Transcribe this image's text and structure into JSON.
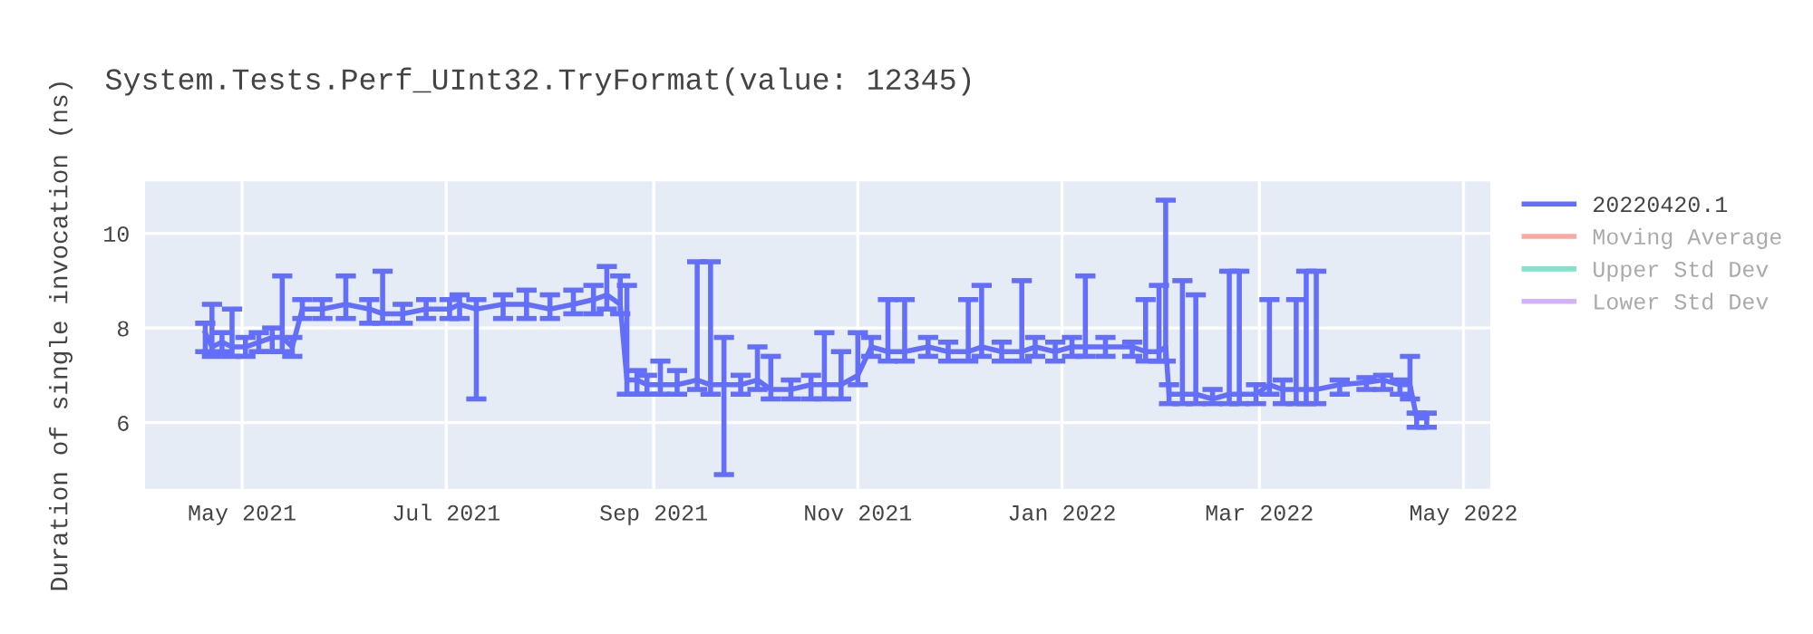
{
  "chart_data": {
    "type": "line",
    "title": "System.Tests.Perf_UInt32.TryFormat(value: 12345)",
    "ylabel": "Duration of single invocation (ns)",
    "x": [
      "2021-04-20",
      "2021-04-22",
      "2021-04-25",
      "2021-04-28",
      "2021-05-02",
      "2021-05-06",
      "2021-05-10",
      "2021-05-13",
      "2021-05-16",
      "2021-05-19",
      "2021-05-25",
      "2021-06-01",
      "2021-06-08",
      "2021-06-12",
      "2021-06-18",
      "2021-06-25",
      "2021-07-02",
      "2021-07-05",
      "2021-07-10",
      "2021-07-18",
      "2021-07-25",
      "2021-08-01",
      "2021-08-08",
      "2021-08-14",
      "2021-08-18",
      "2021-08-22",
      "2021-08-24",
      "2021-08-27",
      "2021-08-30",
      "2021-09-03",
      "2021-09-08",
      "2021-09-14",
      "2021-09-18",
      "2021-09-22",
      "2021-09-27",
      "2021-10-02",
      "2021-10-06",
      "2021-10-12",
      "2021-10-18",
      "2021-10-22",
      "2021-10-27",
      "2021-11-01",
      "2021-11-05",
      "2021-11-10",
      "2021-11-15",
      "2021-11-22",
      "2021-11-28",
      "2021-12-04",
      "2021-12-08",
      "2021-12-14",
      "2021-12-20",
      "2021-12-24",
      "2021-12-30",
      "2022-01-04",
      "2022-01-08",
      "2022-01-14",
      "2022-01-22",
      "2022-01-26",
      "2022-01-30",
      "2022-02-01",
      "2022-02-02",
      "2022-02-06",
      "2022-02-10",
      "2022-02-15",
      "2022-02-20",
      "2022-02-23",
      "2022-02-28",
      "2022-03-04",
      "2022-03-08",
      "2022-03-12",
      "2022-03-15",
      "2022-03-18",
      "2022-03-25",
      "2022-04-02",
      "2022-04-07",
      "2022-04-12",
      "2022-04-15",
      "2022-04-17",
      "2022-04-20"
    ],
    "series": [
      {
        "name": "20220420.1",
        "color": "#636efa",
        "values": [
          7.9,
          7.6,
          7.7,
          7.6,
          7.6,
          7.7,
          7.8,
          7.8,
          7.6,
          8.4,
          8.4,
          8.5,
          8.4,
          8.3,
          8.3,
          8.4,
          8.4,
          8.5,
          8.4,
          8.5,
          8.5,
          8.4,
          8.5,
          8.6,
          8.7,
          8.5,
          6.9,
          6.9,
          6.8,
          6.8,
          6.8,
          6.9,
          6.8,
          6.8,
          6.8,
          6.9,
          6.7,
          6.7,
          6.8,
          6.8,
          6.8,
          7.0,
          7.6,
          7.5,
          7.5,
          7.6,
          7.5,
          7.5,
          7.6,
          7.5,
          7.5,
          7.6,
          7.5,
          7.6,
          7.6,
          7.6,
          7.6,
          7.5,
          7.5,
          7.6,
          6.6,
          6.6,
          6.6,
          6.5,
          6.6,
          6.6,
          6.6,
          6.8,
          6.7,
          6.7,
          6.7,
          6.7,
          6.8,
          6.85,
          6.9,
          6.8,
          6.8,
          6.1,
          6.1
        ],
        "errors": [
          [
            7.5,
            8.1
          ],
          [
            7.4,
            8.5
          ],
          [
            7.5,
            7.9
          ],
          [
            7.4,
            8.4
          ],
          [
            7.4,
            7.8
          ],
          [
            7.5,
            7.9
          ],
          [
            7.5,
            8.0
          ],
          [
            7.5,
            9.1
          ],
          [
            7.4,
            7.8
          ],
          [
            8.2,
            8.6
          ],
          [
            8.2,
            8.6
          ],
          [
            8.2,
            9.1
          ],
          [
            8.1,
            8.6
          ],
          [
            8.1,
            9.2
          ],
          [
            8.1,
            8.5
          ],
          [
            8.2,
            8.6
          ],
          [
            8.2,
            8.6
          ],
          [
            8.2,
            8.7
          ],
          [
            6.5,
            8.6
          ],
          [
            8.2,
            8.7
          ],
          [
            8.2,
            8.8
          ],
          [
            8.2,
            8.7
          ],
          [
            8.3,
            8.8
          ],
          [
            8.3,
            8.9
          ],
          [
            8.4,
            9.3
          ],
          [
            8.3,
            9.1
          ],
          [
            6.6,
            8.9
          ],
          [
            6.6,
            7.1
          ],
          [
            6.6,
            7.0
          ],
          [
            6.6,
            7.3
          ],
          [
            6.6,
            7.1
          ],
          [
            6.7,
            9.4
          ],
          [
            6.6,
            9.4
          ],
          [
            4.9,
            7.8
          ],
          [
            6.6,
            7.0
          ],
          [
            6.7,
            7.6
          ],
          [
            6.5,
            7.4
          ],
          [
            6.5,
            6.9
          ],
          [
            6.5,
            7.0
          ],
          [
            6.5,
            7.9
          ],
          [
            6.5,
            7.5
          ],
          [
            6.8,
            7.9
          ],
          [
            7.4,
            7.8
          ],
          [
            7.3,
            8.6
          ],
          [
            7.3,
            8.6
          ],
          [
            7.4,
            7.8
          ],
          [
            7.3,
            7.7
          ],
          [
            7.3,
            8.6
          ],
          [
            7.4,
            8.9
          ],
          [
            7.3,
            7.7
          ],
          [
            7.3,
            9.0
          ],
          [
            7.4,
            7.8
          ],
          [
            7.3,
            7.7
          ],
          [
            7.4,
            7.8
          ],
          [
            7.4,
            9.1
          ],
          [
            7.4,
            7.8
          ],
          [
            7.4,
            7.7
          ],
          [
            7.3,
            8.6
          ],
          [
            7.3,
            8.9
          ],
          [
            7.3,
            10.7
          ],
          [
            6.4,
            6.8
          ],
          [
            6.4,
            9.0
          ],
          [
            6.4,
            8.7
          ],
          [
            6.4,
            6.7
          ],
          [
            6.4,
            9.2
          ],
          [
            6.4,
            9.2
          ],
          [
            6.4,
            6.8
          ],
          [
            6.6,
            8.6
          ],
          [
            6.4,
            6.9
          ],
          [
            6.4,
            8.6
          ],
          [
            6.4,
            9.2
          ],
          [
            6.4,
            9.2
          ],
          [
            6.6,
            6.9
          ],
          [
            6.7,
            6.95
          ],
          [
            6.7,
            7.0
          ],
          [
            6.6,
            6.9
          ],
          [
            6.5,
            7.4
          ],
          [
            5.9,
            6.2
          ],
          [
            5.9,
            6.2
          ]
        ]
      },
      {
        "name": "Moving Average",
        "color": "#ef553b",
        "values": [
          null,
          null,
          null,
          null,
          null,
          null,
          null,
          null,
          null,
          null,
          null,
          null,
          null,
          null,
          null,
          null,
          null,
          null,
          null,
          null,
          null,
          null,
          null,
          null,
          null,
          null,
          null,
          null,
          null,
          null,
          null,
          null,
          null,
          null,
          null,
          null,
          null,
          null,
          null,
          null,
          null,
          null,
          null,
          null,
          null,
          null,
          null,
          null,
          null,
          null,
          null,
          null,
          null,
          null,
          null,
          null,
          null,
          null,
          null,
          null,
          null,
          null,
          null,
          null,
          null,
          null,
          null,
          null,
          null,
          null,
          null,
          null,
          null,
          null,
          null,
          null,
          null,
          null,
          null
        ]
      },
      {
        "name": "Upper Std Dev",
        "color": "#00cc96",
        "values": [
          null,
          null,
          null,
          null,
          null,
          null,
          null,
          null,
          null,
          null,
          null,
          null,
          null,
          null,
          null,
          null,
          null,
          null,
          null,
          null,
          null,
          null,
          null,
          null,
          null,
          null,
          null,
          null,
          null,
          null,
          null,
          null,
          null,
          null,
          null,
          null,
          null,
          null,
          null,
          null,
          null,
          null,
          null,
          null,
          null,
          null,
          null,
          null,
          null,
          null,
          null,
          null,
          null,
          null,
          null,
          null,
          null,
          null,
          null,
          null,
          null,
          null,
          null,
          null,
          null,
          null,
          null,
          null,
          null,
          null,
          null,
          null,
          null,
          null,
          null,
          null,
          null,
          null,
          null
        ]
      },
      {
        "name": "Lower Std Dev",
        "color": "#ab63fa",
        "values": [
          null,
          null,
          null,
          null,
          null,
          null,
          null,
          null,
          null,
          null,
          null,
          null,
          null,
          null,
          null,
          null,
          null,
          null,
          null,
          null,
          null,
          null,
          null,
          null,
          null,
          null,
          null,
          null,
          null,
          null,
          null,
          null,
          null,
          null,
          null,
          null,
          null,
          null,
          null,
          null,
          null,
          null,
          null,
          null,
          null,
          null,
          null,
          null,
          null,
          null,
          null,
          null,
          null,
          null,
          null,
          null,
          null,
          null,
          null,
          null,
          null,
          null,
          null,
          null,
          null,
          null,
          null,
          null,
          null,
          null,
          null,
          null,
          null,
          null,
          null,
          null,
          null,
          null,
          null
        ]
      }
    ],
    "xlim": [
      "2021-04-02",
      "2022-05-09"
    ],
    "xticks": [
      {
        "value": "2021-05-01",
        "label": "May 2021"
      },
      {
        "value": "2021-07-01",
        "label": "Jul 2021"
      },
      {
        "value": "2021-09-01",
        "label": "Sep 2021"
      },
      {
        "value": "2021-11-01",
        "label": "Nov 2021"
      },
      {
        "value": "2022-01-01",
        "label": "Jan 2022"
      },
      {
        "value": "2022-03-01",
        "label": "Mar 2022"
      },
      {
        "value": "2022-05-01",
        "label": "May 2022"
      }
    ],
    "ylim": [
      4.6,
      11.1
    ],
    "yticks": [
      6,
      8,
      10
    ],
    "grid": true,
    "legend": "right",
    "marker": "none",
    "line_style": "solid"
  }
}
